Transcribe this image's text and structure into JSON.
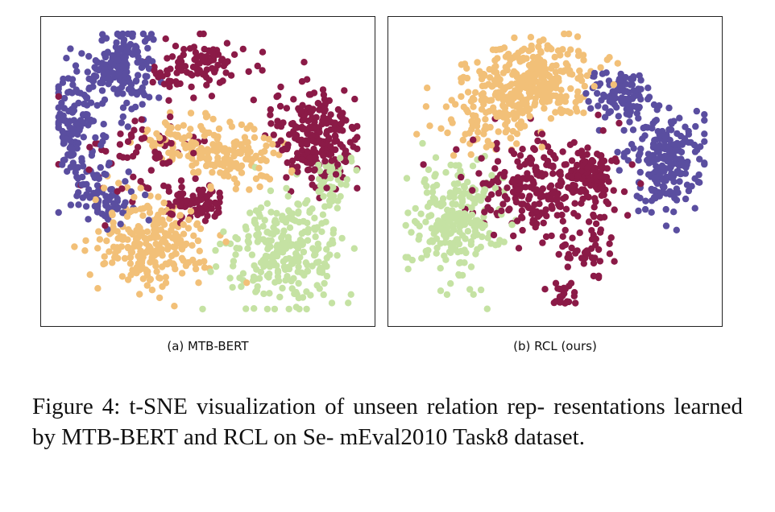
{
  "figure": {
    "caption": "Figure 4: t-SNE visualization of unseen relation rep- resentations learned by MTB-BERT and RCL on Se- mEval2010 Task8 dataset."
  },
  "palette": {
    "purple": "#5a4ea0",
    "maroon": "#8b1a47",
    "orange": "#f2c078",
    "green": "#c5e2a3"
  },
  "chart_data": [
    {
      "type": "scatter",
      "subtitle": "(a) MTB-BERT",
      "title": "",
      "xlabel": "",
      "ylabel": "",
      "axes": "hidden",
      "xlim": [
        0,
        100
      ],
      "ylim": [
        0,
        100
      ],
      "clusters": [
        {
          "color": "purple",
          "cx": 22,
          "cy": 87,
          "sx": 5,
          "sy": 7,
          "n": 170
        },
        {
          "color": "purple",
          "cx": 8,
          "cy": 66,
          "sx": 4,
          "sy": 9,
          "n": 130
        },
        {
          "color": "purple",
          "cx": 16,
          "cy": 42,
          "sx": 5,
          "sy": 5,
          "n": 80
        },
        {
          "color": "maroon",
          "cx": 46,
          "cy": 86,
          "sx": 8,
          "sy": 5,
          "n": 100
        },
        {
          "color": "maroon",
          "cx": 85,
          "cy": 63,
          "sx": 7,
          "sy": 9,
          "n": 230
        },
        {
          "color": "maroon",
          "cx": 46,
          "cy": 38,
          "sx": 5,
          "sy": 3,
          "n": 80
        },
        {
          "color": "maroon",
          "cx": 30,
          "cy": 55,
          "sx": 10,
          "sy": 8,
          "n": 70
        },
        {
          "color": "orange",
          "cx": 32,
          "cy": 25,
          "sx": 9,
          "sy": 8,
          "n": 240
        },
        {
          "color": "orange",
          "cx": 58,
          "cy": 55,
          "sx": 9,
          "sy": 5,
          "n": 130
        },
        {
          "color": "orange",
          "cx": 42,
          "cy": 62,
          "sx": 7,
          "sy": 4,
          "n": 60
        },
        {
          "color": "green",
          "cx": 75,
          "cy": 22,
          "sx": 9,
          "sy": 9,
          "n": 260
        },
        {
          "color": "green",
          "cx": 90,
          "cy": 45,
          "sx": 3,
          "sy": 6,
          "n": 50
        }
      ]
    },
    {
      "type": "scatter",
      "subtitle": "(b) RCL (ours)",
      "title": "",
      "xlabel": "",
      "ylabel": "",
      "axes": "hidden",
      "xlim": [
        0,
        100
      ],
      "ylim": [
        0,
        100
      ],
      "clusters": [
        {
          "color": "orange",
          "cx": 42,
          "cy": 82,
          "sx": 10,
          "sy": 7,
          "n": 320
        },
        {
          "color": "orange",
          "cx": 30,
          "cy": 68,
          "sx": 8,
          "sy": 5,
          "n": 90
        },
        {
          "color": "purple",
          "cx": 70,
          "cy": 77,
          "sx": 5,
          "sy": 4,
          "n": 110
        },
        {
          "color": "purple",
          "cx": 85,
          "cy": 53,
          "sx": 6,
          "sy": 8,
          "n": 220
        },
        {
          "color": "maroon",
          "cx": 47,
          "cy": 44,
          "sx": 12,
          "sy": 9,
          "n": 260
        },
        {
          "color": "maroon",
          "cx": 63,
          "cy": 48,
          "sx": 4,
          "sy": 4,
          "n": 70
        },
        {
          "color": "maroon",
          "cx": 52,
          "cy": 7,
          "sx": 3,
          "sy": 2,
          "n": 25
        },
        {
          "color": "maroon",
          "cx": 60,
          "cy": 22,
          "sx": 6,
          "sy": 5,
          "n": 40
        },
        {
          "color": "green",
          "cx": 18,
          "cy": 33,
          "sx": 7,
          "sy": 10,
          "n": 240
        }
      ]
    }
  ]
}
